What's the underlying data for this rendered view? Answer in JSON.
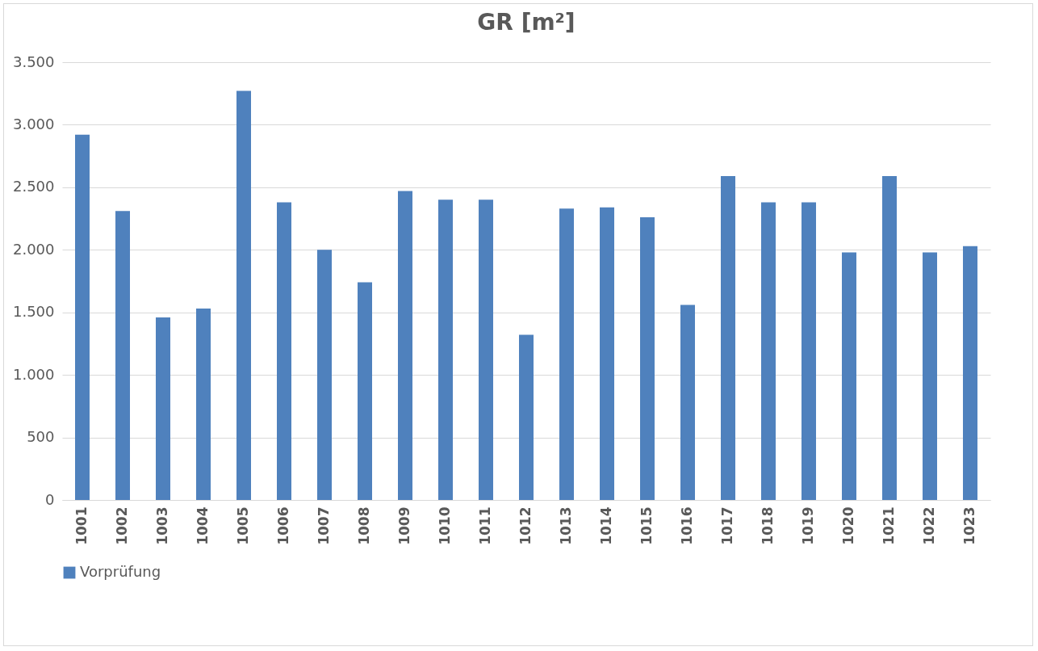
{
  "chart_data": {
    "type": "bar",
    "title": "GR [m²]",
    "categories": [
      "1001",
      "1002",
      "1003",
      "1004",
      "1005",
      "1006",
      "1007",
      "1008",
      "1009",
      "1010",
      "1011",
      "1012",
      "1013",
      "1014",
      "1015",
      "1016",
      "1017",
      "1018",
      "1019",
      "1020",
      "1021",
      "1022",
      "1023"
    ],
    "series": [
      {
        "name": "Vorprüfung",
        "color": "#4f81bd",
        "values": [
          2920,
          2310,
          1460,
          1530,
          3270,
          2380,
          2000,
          1740,
          2470,
          2400,
          2400,
          1320,
          2330,
          2340,
          2260,
          1560,
          2590,
          2380,
          2380,
          1980,
          2590,
          1980,
          2030
        ]
      }
    ],
    "ylim": [
      0,
      3500
    ],
    "yticks": [
      0,
      500,
      {
        "value": 1000,
        "label": "1.000"
      },
      {
        "value": 1500,
        "label": "1.500"
      },
      {
        "value": 2000,
        "label": "2.000"
      },
      {
        "value": 2500,
        "label": "2.500"
      },
      {
        "value": 3000,
        "label": "3.000"
      },
      {
        "value": 3500,
        "label": "3.500"
      }
    ],
    "grid": "y",
    "legend": "bottom"
  }
}
